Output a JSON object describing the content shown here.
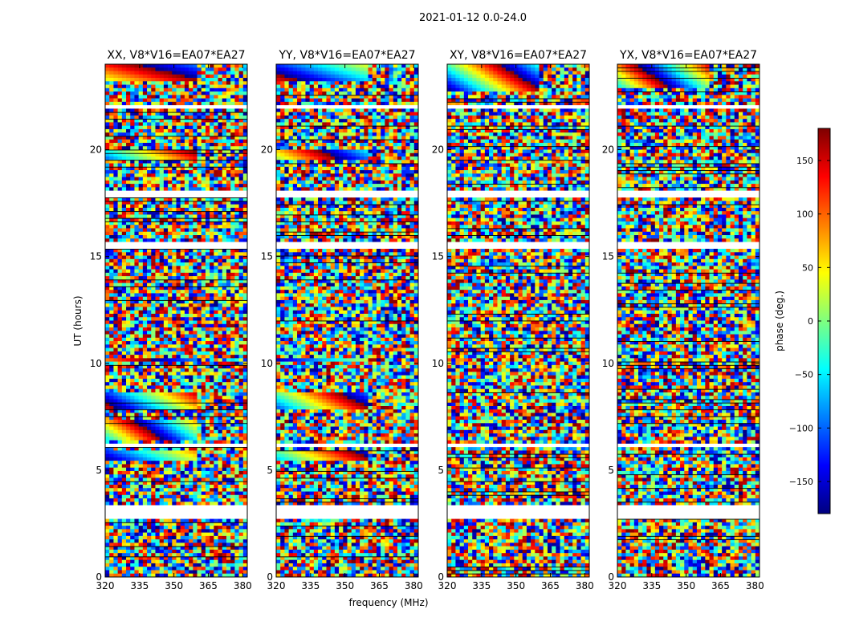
{
  "figure": {
    "suptitle": "2021-01-12 0.0-24.0",
    "xlabel": "frequency (MHz)",
    "ylabel": "UT (hours)"
  },
  "colorbar": {
    "label": "phase (deg.)",
    "range": [
      -180,
      180
    ],
    "ticks": [
      150,
      100,
      50,
      0,
      -50,
      -100,
      -150
    ],
    "colormap": "jet",
    "colors": [
      "#00007f",
      "#0000ff",
      "#007fff",
      "#00ffff",
      "#7fff7f",
      "#ffff00",
      "#ff7f00",
      "#ff0000",
      "#7f0000"
    ]
  },
  "chart_data": [
    {
      "type": "heatmap",
      "title": "XX, V8*V16=EA07*EA27",
      "x_ticks": [
        320,
        335,
        350,
        365,
        380
      ],
      "xlim": [
        320,
        382
      ],
      "y_ticks": [
        0,
        5,
        10,
        15,
        20
      ],
      "ylim": [
        0,
        24
      ],
      "value": "phase (deg.)"
    },
    {
      "type": "heatmap",
      "title": "YY, V8*V16=EA07*EA27",
      "x_ticks": [
        320,
        335,
        350,
        365,
        380
      ],
      "xlim": [
        320,
        382
      ],
      "y_ticks": [
        0,
        5,
        10,
        15,
        20
      ],
      "ylim": [
        0,
        24
      ],
      "value": "phase (deg.)"
    },
    {
      "type": "heatmap",
      "title": "XY, V8*V16=EA07*EA27",
      "x_ticks": [
        320,
        335,
        350,
        365,
        380
      ],
      "xlim": [
        320,
        382
      ],
      "y_ticks": [
        0,
        5,
        10,
        15,
        20
      ],
      "ylim": [
        0,
        24
      ],
      "value": "phase (deg.)"
    },
    {
      "type": "heatmap",
      "title": "YX, V8*V16=EA07*EA27",
      "x_ticks": [
        320,
        335,
        350,
        365,
        380
      ],
      "xlim": [
        320,
        382
      ],
      "y_ticks": [
        0,
        5,
        10,
        15,
        20
      ],
      "ylim": [
        0,
        24
      ],
      "value": "phase (deg.)"
    }
  ]
}
